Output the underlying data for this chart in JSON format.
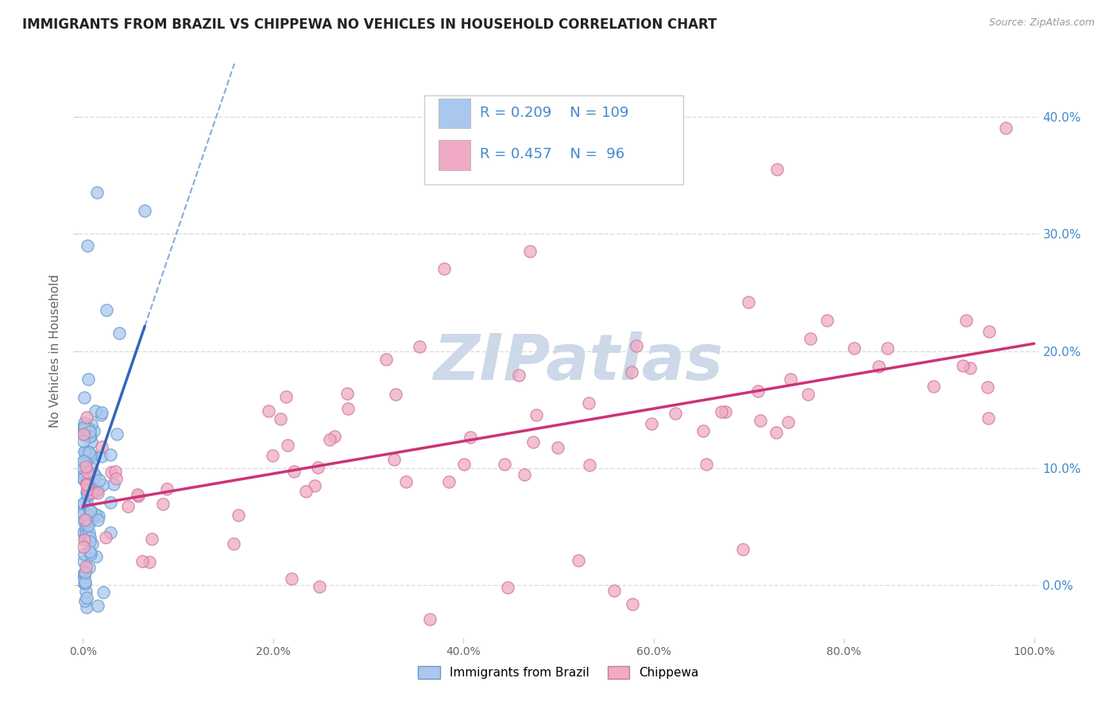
{
  "title": "IMMIGRANTS FROM BRAZIL VS CHIPPEWA NO VEHICLES IN HOUSEHOLD CORRELATION CHART",
  "source_text": "Source: ZipAtlas.com",
  "ylabel": "No Vehicles in Household",
  "xlim": [
    -0.005,
    1.005
  ],
  "ylim": [
    -0.045,
    0.445
  ],
  "xticks": [
    0.0,
    0.2,
    0.4,
    0.6,
    0.8,
    1.0
  ],
  "yticks": [
    0.0,
    0.1,
    0.2,
    0.3,
    0.4
  ],
  "xtick_labels": [
    "0.0%",
    "20.0%",
    "40.0%",
    "60.0%",
    "80.0%",
    "100.0%"
  ],
  "ytick_labels_right": [
    "0.0%",
    "10.0%",
    "20.0%",
    "30.0%",
    "40.0%"
  ],
  "series1_label": "Immigrants from Brazil",
  "series2_label": "Chippewa",
  "series1_color": "#aac8ee",
  "series2_color": "#f0aac5",
  "series1_edge": "#6699cc",
  "series2_edge": "#cc7799",
  "trendline1_color": "#3366bb",
  "trendline2_color": "#cc3377",
  "dashed_line_color": "#88aadd",
  "watermark_color": "#cdd8e8",
  "background_color": "#ffffff",
  "title_color": "#222222",
  "axis_color": "#666666",
  "grid_color": "#dddddd",
  "title_fontsize": 12,
  "label_fontsize": 11,
  "tick_fontsize": 10,
  "legend_fontsize": 13,
  "right_tick_color": "#4488cc"
}
